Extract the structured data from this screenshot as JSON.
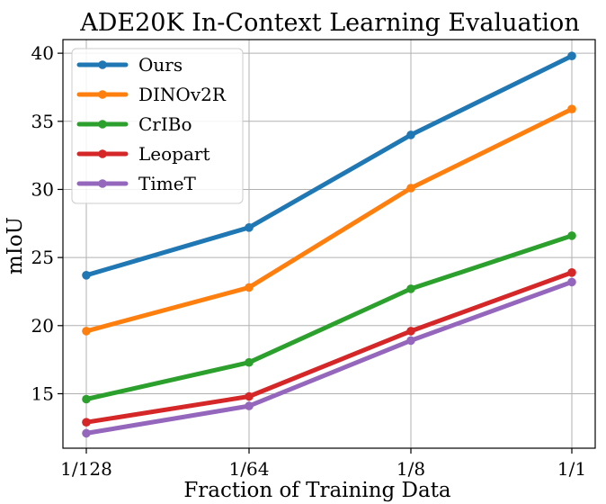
{
  "chart_data": {
    "type": "line",
    "title": "ADE20K In-Context Learning Evaluation",
    "xlabel": "Fraction of Training Data",
    "ylabel": "mIoU",
    "categories": [
      "1/128",
      "1/64",
      "1/8",
      "1/1"
    ],
    "ylim": [
      11,
      41
    ],
    "yticks": [
      15,
      20,
      25,
      30,
      35,
      40
    ],
    "grid": true,
    "legend_position": "top-left",
    "series": [
      {
        "name": "Ours",
        "color": "#1f77b4",
        "values": [
          23.7,
          27.2,
          34.0,
          39.8
        ]
      },
      {
        "name": "DINOv2R",
        "color": "#ff7f0e",
        "values": [
          19.6,
          22.8,
          30.1,
          35.9
        ]
      },
      {
        "name": "CrIBo",
        "color": "#2ca02c",
        "values": [
          14.6,
          17.3,
          22.7,
          26.6
        ]
      },
      {
        "name": "Leopart",
        "color": "#d62728",
        "values": [
          12.9,
          14.8,
          19.6,
          23.9
        ]
      },
      {
        "name": "TimeT",
        "color": "#9467bd",
        "values": [
          12.1,
          14.1,
          18.9,
          23.2
        ]
      }
    ]
  }
}
